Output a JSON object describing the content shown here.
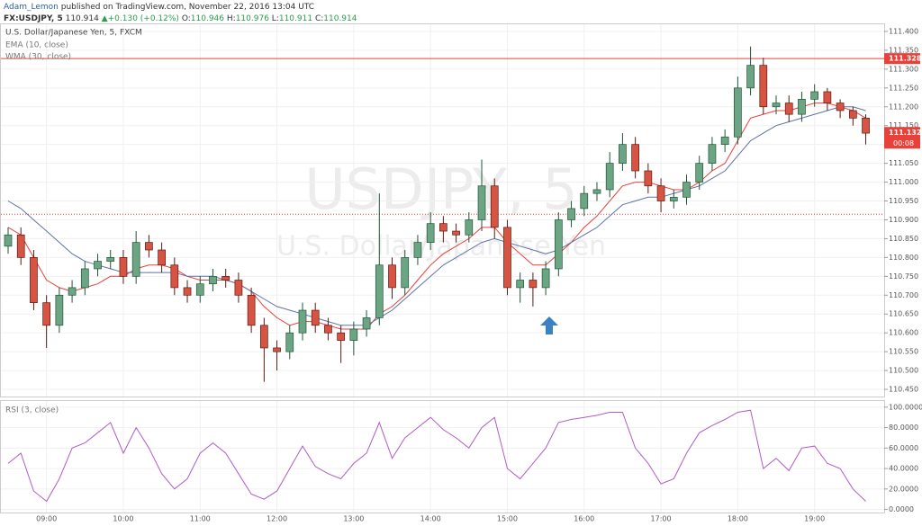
{
  "header": {
    "author": "Adam_Lemon",
    "published": "published on TradingView.com, November 22, 2016 13:04 UTC",
    "symbol": "FX:USDJPY, 5",
    "last": "110.914",
    "change": "+0.130 (+0.12%)",
    "open_label": "O:",
    "open": "110.946",
    "high_label": "H:",
    "high": "110.976",
    "low_label": "L:",
    "low": "110.911",
    "close_label": "C:",
    "close": "110.914"
  },
  "chart_data": [
    {
      "type": "candlestick",
      "title": "U.S. Dollar/Japanese Yen, 5, FXCM",
      "watermark": "USDJPY, 5",
      "watermark_subtitle": "U.S. Dollar/Japanese Yen",
      "up_color": "#6ba583",
      "up_border": "#225437",
      "down_color": "#d75442",
      "down_border": "#5b1a13",
      "grid": true,
      "categories": [
        null,
        null,
        null,
        "09:00",
        null,
        null,
        null,
        null,
        null,
        "10:00",
        null,
        null,
        null,
        null,
        null,
        "11:00",
        null,
        null,
        null,
        null,
        null,
        "12:00",
        null,
        null,
        null,
        null,
        null,
        "13:00",
        null,
        null,
        null,
        null,
        null,
        "14:00",
        null,
        null,
        null,
        null,
        null,
        "15:00",
        null,
        null,
        null,
        null,
        null,
        "16:00",
        null,
        null,
        null,
        null,
        null,
        "17:00",
        null,
        null,
        null,
        null,
        null,
        "18:00",
        null,
        null,
        null,
        null,
        null,
        "19:00",
        null,
        null,
        null,
        null
      ],
      "open": [
        110.83,
        110.86,
        110.8,
        110.68,
        110.62,
        110.7,
        110.72,
        110.77,
        110.79,
        110.8,
        110.75,
        110.84,
        110.82,
        110.78,
        110.72,
        110.7,
        110.73,
        110.75,
        110.74,
        110.7,
        110.62,
        110.56,
        110.55,
        110.6,
        110.66,
        110.62,
        110.6,
        110.58,
        110.61,
        110.64,
        110.78,
        110.72,
        110.8,
        110.84,
        110.89,
        110.87,
        110.86,
        110.9,
        110.99,
        110.88,
        110.72,
        110.74,
        110.72,
        110.77,
        110.9,
        110.93,
        110.97,
        110.98,
        111.05,
        111.1,
        111.03,
        110.99,
        110.95,
        110.96,
        111.0,
        111.05,
        111.1,
        111.12,
        111.25,
        111.31,
        111.2,
        111.21,
        111.18,
        111.22,
        111.24,
        111.21,
        111.19,
        111.17
      ],
      "high": [
        110.88,
        110.88,
        110.82,
        110.7,
        110.72,
        110.74,
        110.79,
        110.81,
        110.82,
        110.82,
        110.87,
        110.86,
        110.84,
        110.8,
        110.74,
        110.75,
        110.77,
        110.77,
        110.76,
        110.72,
        110.64,
        110.58,
        110.62,
        110.68,
        110.68,
        110.64,
        110.62,
        110.63,
        110.66,
        110.97,
        110.8,
        110.82,
        110.86,
        110.92,
        110.91,
        110.89,
        110.92,
        111.06,
        111.01,
        110.9,
        110.76,
        110.76,
        110.79,
        110.92,
        110.95,
        110.99,
        111.0,
        111.08,
        111.13,
        111.12,
        111.05,
        111.01,
        110.98,
        111.02,
        111.07,
        111.12,
        111.14,
        111.28,
        111.36,
        111.33,
        111.23,
        111.23,
        111.24,
        111.26,
        111.25,
        111.22,
        111.2,
        111.18
      ],
      "low": [
        110.81,
        110.78,
        110.66,
        110.56,
        110.6,
        110.68,
        110.7,
        110.75,
        110.77,
        110.73,
        110.73,
        110.8,
        110.76,
        110.7,
        110.68,
        110.68,
        110.71,
        110.72,
        110.68,
        110.6,
        110.47,
        110.5,
        110.53,
        110.58,
        110.6,
        110.58,
        110.52,
        110.54,
        110.59,
        110.62,
        110.69,
        110.7,
        110.78,
        110.82,
        110.84,
        110.84,
        110.84,
        110.87,
        110.85,
        110.7,
        110.68,
        110.67,
        110.7,
        110.75,
        110.88,
        110.91,
        110.95,
        110.96,
        111.03,
        111.01,
        110.97,
        110.92,
        110.93,
        110.94,
        110.98,
        111.03,
        111.08,
        111.1,
        111.23,
        111.18,
        111.18,
        111.16,
        111.16,
        111.2,
        111.19,
        111.17,
        111.15,
        111.1
      ],
      "close": [
        110.86,
        110.8,
        110.68,
        110.62,
        110.7,
        110.72,
        110.77,
        110.79,
        110.8,
        110.75,
        110.84,
        110.82,
        110.78,
        110.72,
        110.7,
        110.73,
        110.75,
        110.74,
        110.7,
        110.62,
        110.56,
        110.55,
        110.6,
        110.66,
        110.62,
        110.6,
        110.58,
        110.61,
        110.64,
        110.78,
        110.72,
        110.8,
        110.84,
        110.89,
        110.87,
        110.86,
        110.9,
        110.99,
        110.88,
        110.72,
        110.74,
        110.72,
        110.77,
        110.9,
        110.93,
        110.97,
        110.98,
        111.05,
        111.1,
        111.03,
        110.99,
        110.95,
        110.96,
        111.0,
        111.05,
        111.1,
        111.12,
        111.25,
        111.31,
        111.2,
        111.21,
        111.18,
        111.22,
        111.24,
        111.21,
        111.19,
        111.17,
        111.13
      ],
      "series": [
        {
          "name": "EMA (10, close)",
          "color": "#e8413a",
          "values": [
            110.88,
            110.86,
            110.8,
            110.74,
            110.72,
            110.71,
            110.72,
            110.73,
            110.75,
            110.75,
            110.77,
            110.78,
            110.78,
            110.77,
            110.75,
            110.74,
            110.74,
            110.74,
            110.73,
            110.71,
            110.67,
            110.64,
            110.62,
            110.63,
            110.63,
            110.62,
            110.61,
            110.61,
            110.61,
            110.65,
            110.67,
            110.7,
            110.74,
            110.78,
            110.81,
            110.83,
            110.85,
            110.88,
            110.88,
            110.84,
            110.81,
            110.78,
            110.78,
            110.81,
            110.84,
            110.88,
            110.91,
            110.95,
            110.99,
            111.0,
            111.0,
            110.99,
            110.98,
            110.98,
            111.0,
            111.03,
            111.05,
            111.11,
            111.17,
            111.18,
            111.19,
            111.19,
            111.2,
            111.21,
            111.21,
            111.2,
            111.19,
            111.17
          ]
        },
        {
          "name": "WMA (30, close)",
          "color": "#5d72a8",
          "values": [
            110.95,
            110.93,
            110.9,
            110.87,
            110.84,
            110.81,
            110.79,
            110.78,
            110.77,
            110.76,
            110.76,
            110.76,
            110.76,
            110.76,
            110.75,
            110.75,
            110.75,
            110.74,
            110.73,
            110.71,
            110.69,
            110.67,
            110.66,
            110.65,
            110.64,
            110.63,
            110.62,
            110.62,
            110.62,
            110.64,
            110.66,
            110.69,
            110.72,
            110.75,
            110.78,
            110.8,
            110.82,
            110.84,
            110.85,
            110.84,
            110.83,
            110.82,
            110.81,
            110.82,
            110.84,
            110.86,
            110.88,
            110.91,
            110.94,
            110.95,
            110.96,
            110.96,
            110.97,
            110.98,
            110.99,
            111.01,
            111.03,
            111.07,
            111.11,
            111.13,
            111.15,
            111.16,
            111.17,
            111.18,
            111.19,
            111.2,
            111.2,
            111.19
          ]
        }
      ],
      "hlines": [
        {
          "value": 111.328,
          "label": "111.328",
          "color": "#e8413a",
          "style": "solid"
        },
        {
          "value": 110.915,
          "color": "#e8413a",
          "style": "dotted"
        }
      ],
      "last_price": {
        "value": 111.132,
        "label": "111.132",
        "countdown": "00:08",
        "color": "#e8413a"
      },
      "ylim": [
        110.431,
        111.419
      ],
      "yticks": [
        {
          "value": 110.45,
          "label": "110.450"
        },
        {
          "value": 110.5,
          "label": "110.500"
        },
        {
          "value": 110.55,
          "label": "110.550"
        },
        {
          "value": 110.6,
          "label": "110.600"
        },
        {
          "value": 110.65,
          "label": "110.650"
        },
        {
          "value": 110.7,
          "label": "110.700"
        },
        {
          "value": 110.75,
          "label": "110.750"
        },
        {
          "value": 110.8,
          "label": "110.800"
        },
        {
          "value": 110.85,
          "label": "110.850"
        },
        {
          "value": 110.9,
          "label": "110.900"
        },
        {
          "value": 110.95,
          "label": "110.950"
        },
        {
          "value": 111.0,
          "label": "111.000"
        },
        {
          "value": 111.05,
          "label": "111.050"
        },
        {
          "value": 111.1,
          "label": "111.100"
        },
        {
          "value": 111.15,
          "label": "111.150"
        },
        {
          "value": 111.2,
          "label": "111.200"
        },
        {
          "value": 111.25,
          "label": "111.250"
        },
        {
          "value": 111.3,
          "label": "111.300"
        },
        {
          "value": 111.35,
          "label": "111.350"
        },
        {
          "value": 111.4,
          "label": "111.400"
        }
      ]
    },
    {
      "type": "line",
      "title": "RSI (3, close)",
      "grid": true,
      "series": [
        {
          "name": "RSI (3, close)",
          "color": "#b05cc6",
          "values": [
            45,
            55,
            18,
            8,
            30,
            60,
            65,
            75,
            85,
            55,
            80,
            60,
            35,
            20,
            30,
            55,
            65,
            55,
            35,
            15,
            10,
            18,
            40,
            62,
            42,
            35,
            30,
            45,
            55,
            85,
            50,
            70,
            80,
            90,
            78,
            70,
            60,
            80,
            90,
            40,
            30,
            45,
            60,
            85,
            88,
            90,
            92,
            95,
            95,
            60,
            45,
            25,
            30,
            55,
            75,
            82,
            88,
            95,
            97,
            40,
            50,
            38,
            60,
            62,
            45,
            40,
            20,
            8
          ]
        }
      ],
      "ylim": [
        -3,
        106
      ],
      "yticks": [
        {
          "value": 0,
          "label": "0.0000"
        },
        {
          "value": 20,
          "label": "20.0000"
        },
        {
          "value": 40,
          "label": "40.0000"
        },
        {
          "value": 60,
          "label": "60.0000"
        },
        {
          "value": 80,
          "label": "80.0000"
        },
        {
          "value": 100,
          "label": "100.0000"
        }
      ]
    }
  ]
}
